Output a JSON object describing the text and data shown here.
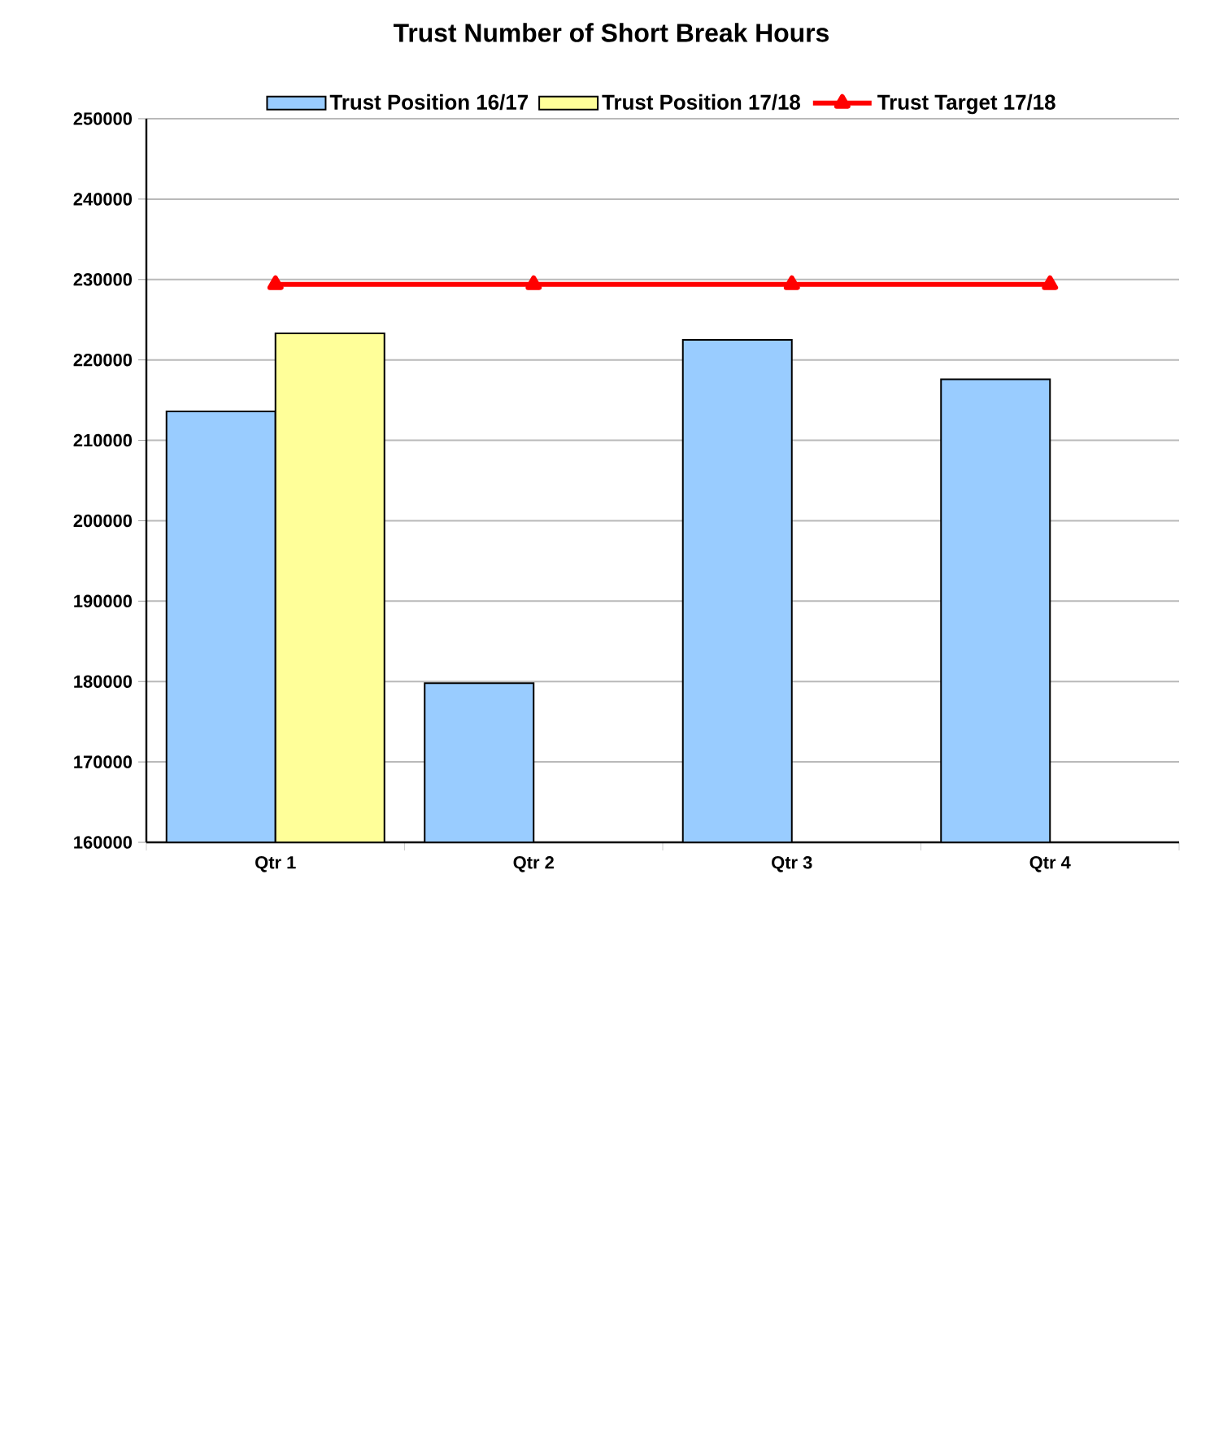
{
  "chart_data": {
    "type": "bar",
    "title": "Trust Number of Short Break Hours",
    "categories": [
      "Qtr 1",
      "Qtr 2",
      "Qtr 3",
      "Qtr 4"
    ],
    "series": [
      {
        "name": "Trust  Position 16/17",
        "color": "#99ccff",
        "values": [
          213600,
          179800,
          222500,
          217600
        ]
      },
      {
        "name": "Trust  Position 17/18",
        "color": "#ffff99",
        "values": [
          223300,
          null,
          null,
          null
        ]
      },
      {
        "name": "Trust Target 17/18",
        "type": "line",
        "color": "#ff0000",
        "marker": "triangle",
        "values": [
          229400,
          229400,
          229400,
          229400
        ]
      }
    ],
    "ylim": [
      160000,
      250000
    ],
    "yticks": [
      160000,
      170000,
      180000,
      190000,
      200000,
      210000,
      220000,
      230000,
      240000,
      250000
    ],
    "grid": "y",
    "legend": "top"
  }
}
